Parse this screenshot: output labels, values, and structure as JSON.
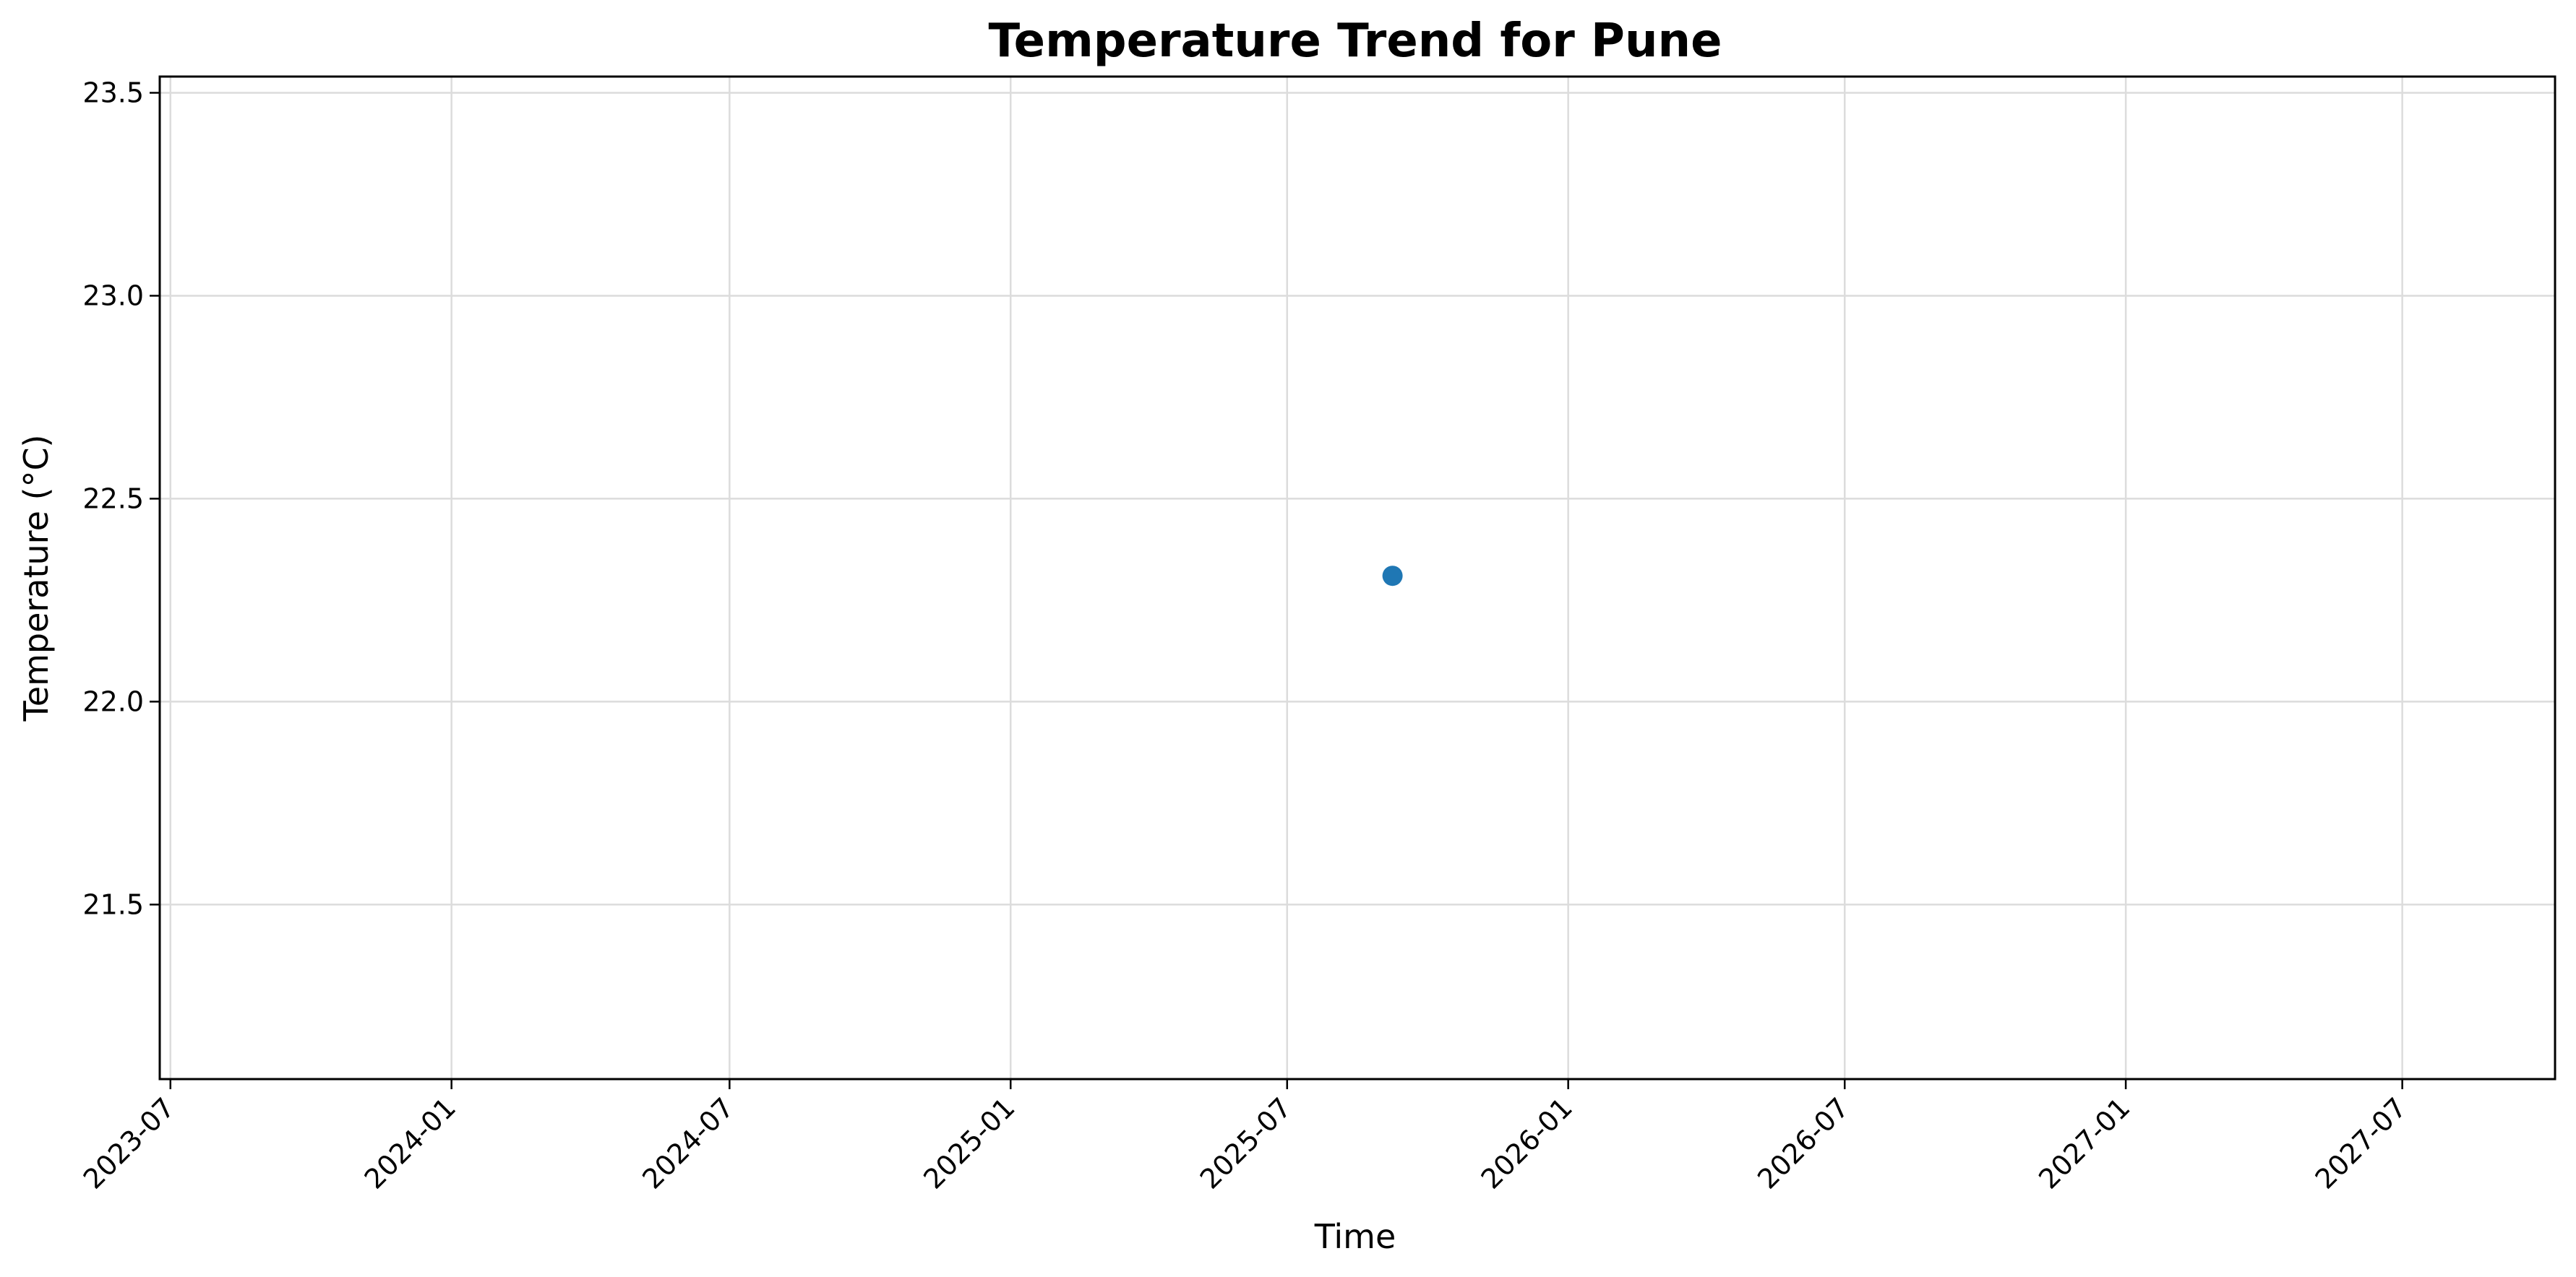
{
  "chart_data": {
    "type": "scatter",
    "title": "Temperature Trend for Pune",
    "xlabel": "Time",
    "ylabel": "Temperature (°C)",
    "x_axis_type": "date",
    "xlim": [
      "2023-06-24",
      "2027-10-09"
    ],
    "ylim": [
      21.07,
      23.54
    ],
    "grid": true,
    "legend": "none",
    "x_ticks": [
      "2023-07",
      "2024-01",
      "2024-07",
      "2025-01",
      "2025-07",
      "2026-01",
      "2026-07",
      "2027-01",
      "2027-07"
    ],
    "x_tick_rotation_deg": 45,
    "y_ticks": [
      "21.5",
      "22.0",
      "22.5",
      "23.0",
      "23.5"
    ],
    "series": [
      {
        "color": "#1f77b4",
        "points": [
          {
            "x": "2025-09-08",
            "y": 22.31
          }
        ]
      }
    ]
  }
}
